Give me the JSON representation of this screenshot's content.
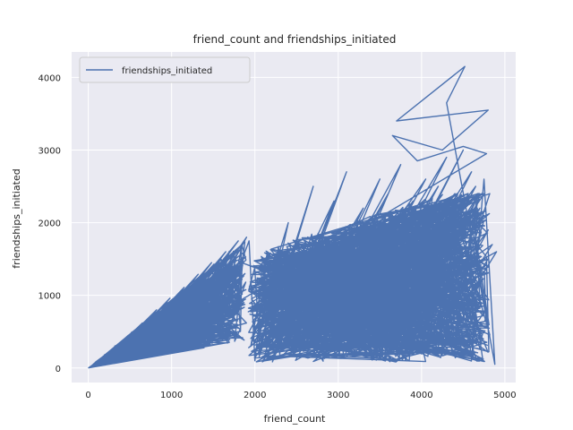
{
  "chart_data": {
    "type": "line",
    "title": "friend_count and friendships_initiated",
    "xlabel": "friend_count",
    "ylabel": "friendships_initiated",
    "xlim": [
      -200,
      5130
    ],
    "ylim": [
      -200,
      4350
    ],
    "xticks": [
      0,
      1000,
      2000,
      3000,
      4000,
      5000
    ],
    "yticks": [
      0,
      1000,
      2000,
      3000,
      4000
    ],
    "xtick_labels": [
      "0",
      "1000",
      "2000",
      "3000",
      "4000",
      "5000"
    ],
    "ytick_labels": [
      "0",
      "1000",
      "2000",
      "3000",
      "4000"
    ],
    "grid": true,
    "legend_position": "top-left",
    "series": [
      {
        "name": "friendships_initiated",
        "color": "#4c72b0",
        "note_density": "dense",
        "x": [
          0,
          150,
          60,
          320,
          120,
          480,
          220,
          650,
          300,
          820,
          410,
          980,
          520,
          1150,
          640,
          1320,
          760,
          1480,
          880,
          1650,
          1000,
          1800,
          1120,
          1850,
          1300,
          1900,
          1500,
          1880,
          1700,
          1930,
          2000,
          2150,
          1950,
          2400,
          2050,
          2700,
          2150,
          2950,
          2250,
          3100,
          2400,
          3300,
          2500,
          3500,
          2600,
          3600,
          2700,
          3750,
          2800,
          3900,
          2900,
          4050,
          3000,
          4200,
          3100,
          4300,
          3200,
          4400,
          3300,
          4500,
          3400,
          4550,
          3500,
          4600,
          3600,
          4650,
          3700,
          4700,
          3800,
          4750,
          3900,
          4800,
          4000,
          4850,
          4100,
          4900,
          4200,
          4400,
          4600,
          4750,
          4880,
          4300,
          4520,
          3700,
          4800,
          4250,
          3650,
          3950,
          4500,
          4780
        ],
        "y": [
          0,
          120,
          40,
          290,
          80,
          450,
          150,
          620,
          210,
          800,
          280,
          960,
          350,
          1110,
          430,
          1290,
          500,
          1450,
          560,
          1600,
          620,
          1750,
          700,
          1500,
          800,
          1800,
          950,
          1300,
          1050,
          1750,
          100,
          1600,
          300,
          2000,
          150,
          2500,
          400,
          2300,
          200,
          2700,
          500,
          2200,
          300,
          2600,
          150,
          2400,
          600,
          2800,
          250,
          2300,
          700,
          2600,
          350,
          2500,
          150,
          2900,
          800,
          2400,
          300,
          3000,
          600,
          2300,
          200,
          2700,
          900,
          2500,
          400,
          2200,
          1000,
          2100,
          500,
          1900,
          200,
          1700,
          1100,
          1600,
          300,
          1800,
          600,
          2600,
          50,
          3650,
          4150,
          3400,
          3550,
          3000,
          3200,
          2850,
          3050,
          2950
        ]
      }
    ]
  }
}
